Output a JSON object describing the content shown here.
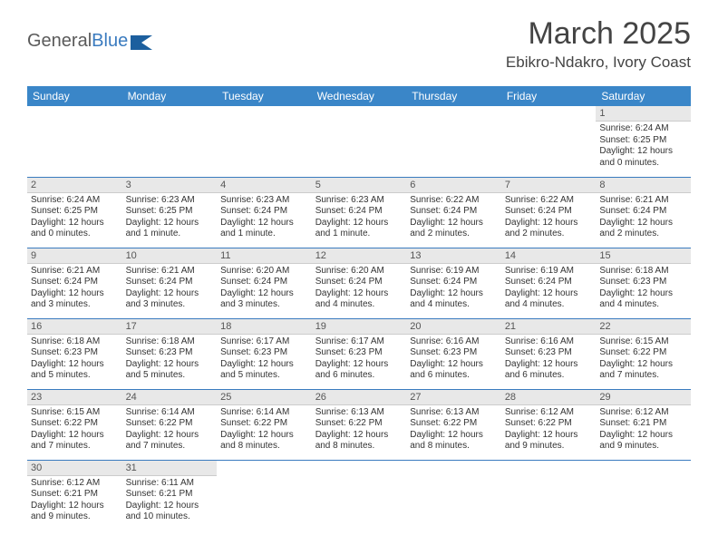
{
  "logo": {
    "text_a": "General",
    "text_b": "Blue",
    "accent": "#3a7bbf"
  },
  "title": "March 2025",
  "location": "Ebikro-Ndakro, Ivory Coast",
  "header_bg": "#3a86c8",
  "day_headers": [
    "Sunday",
    "Monday",
    "Tuesday",
    "Wednesday",
    "Thursday",
    "Friday",
    "Saturday"
  ],
  "weeks": [
    [
      null,
      null,
      null,
      null,
      null,
      null,
      {
        "n": "1",
        "sr": "Sunrise: 6:24 AM",
        "ss": "Sunset: 6:25 PM",
        "dl": "Daylight: 12 hours and 0 minutes."
      }
    ],
    [
      {
        "n": "2",
        "sr": "Sunrise: 6:24 AM",
        "ss": "Sunset: 6:25 PM",
        "dl": "Daylight: 12 hours and 0 minutes."
      },
      {
        "n": "3",
        "sr": "Sunrise: 6:23 AM",
        "ss": "Sunset: 6:25 PM",
        "dl": "Daylight: 12 hours and 1 minute."
      },
      {
        "n": "4",
        "sr": "Sunrise: 6:23 AM",
        "ss": "Sunset: 6:24 PM",
        "dl": "Daylight: 12 hours and 1 minute."
      },
      {
        "n": "5",
        "sr": "Sunrise: 6:23 AM",
        "ss": "Sunset: 6:24 PM",
        "dl": "Daylight: 12 hours and 1 minute."
      },
      {
        "n": "6",
        "sr": "Sunrise: 6:22 AM",
        "ss": "Sunset: 6:24 PM",
        "dl": "Daylight: 12 hours and 2 minutes."
      },
      {
        "n": "7",
        "sr": "Sunrise: 6:22 AM",
        "ss": "Sunset: 6:24 PM",
        "dl": "Daylight: 12 hours and 2 minutes."
      },
      {
        "n": "8",
        "sr": "Sunrise: 6:21 AM",
        "ss": "Sunset: 6:24 PM",
        "dl": "Daylight: 12 hours and 2 minutes."
      }
    ],
    [
      {
        "n": "9",
        "sr": "Sunrise: 6:21 AM",
        "ss": "Sunset: 6:24 PM",
        "dl": "Daylight: 12 hours and 3 minutes."
      },
      {
        "n": "10",
        "sr": "Sunrise: 6:21 AM",
        "ss": "Sunset: 6:24 PM",
        "dl": "Daylight: 12 hours and 3 minutes."
      },
      {
        "n": "11",
        "sr": "Sunrise: 6:20 AM",
        "ss": "Sunset: 6:24 PM",
        "dl": "Daylight: 12 hours and 3 minutes."
      },
      {
        "n": "12",
        "sr": "Sunrise: 6:20 AM",
        "ss": "Sunset: 6:24 PM",
        "dl": "Daylight: 12 hours and 4 minutes."
      },
      {
        "n": "13",
        "sr": "Sunrise: 6:19 AM",
        "ss": "Sunset: 6:24 PM",
        "dl": "Daylight: 12 hours and 4 minutes."
      },
      {
        "n": "14",
        "sr": "Sunrise: 6:19 AM",
        "ss": "Sunset: 6:24 PM",
        "dl": "Daylight: 12 hours and 4 minutes."
      },
      {
        "n": "15",
        "sr": "Sunrise: 6:18 AM",
        "ss": "Sunset: 6:23 PM",
        "dl": "Daylight: 12 hours and 4 minutes."
      }
    ],
    [
      {
        "n": "16",
        "sr": "Sunrise: 6:18 AM",
        "ss": "Sunset: 6:23 PM",
        "dl": "Daylight: 12 hours and 5 minutes."
      },
      {
        "n": "17",
        "sr": "Sunrise: 6:18 AM",
        "ss": "Sunset: 6:23 PM",
        "dl": "Daylight: 12 hours and 5 minutes."
      },
      {
        "n": "18",
        "sr": "Sunrise: 6:17 AM",
        "ss": "Sunset: 6:23 PM",
        "dl": "Daylight: 12 hours and 5 minutes."
      },
      {
        "n": "19",
        "sr": "Sunrise: 6:17 AM",
        "ss": "Sunset: 6:23 PM",
        "dl": "Daylight: 12 hours and 6 minutes."
      },
      {
        "n": "20",
        "sr": "Sunrise: 6:16 AM",
        "ss": "Sunset: 6:23 PM",
        "dl": "Daylight: 12 hours and 6 minutes."
      },
      {
        "n": "21",
        "sr": "Sunrise: 6:16 AM",
        "ss": "Sunset: 6:23 PM",
        "dl": "Daylight: 12 hours and 6 minutes."
      },
      {
        "n": "22",
        "sr": "Sunrise: 6:15 AM",
        "ss": "Sunset: 6:22 PM",
        "dl": "Daylight: 12 hours and 7 minutes."
      }
    ],
    [
      {
        "n": "23",
        "sr": "Sunrise: 6:15 AM",
        "ss": "Sunset: 6:22 PM",
        "dl": "Daylight: 12 hours and 7 minutes."
      },
      {
        "n": "24",
        "sr": "Sunrise: 6:14 AM",
        "ss": "Sunset: 6:22 PM",
        "dl": "Daylight: 12 hours and 7 minutes."
      },
      {
        "n": "25",
        "sr": "Sunrise: 6:14 AM",
        "ss": "Sunset: 6:22 PM",
        "dl": "Daylight: 12 hours and 8 minutes."
      },
      {
        "n": "26",
        "sr": "Sunrise: 6:13 AM",
        "ss": "Sunset: 6:22 PM",
        "dl": "Daylight: 12 hours and 8 minutes."
      },
      {
        "n": "27",
        "sr": "Sunrise: 6:13 AM",
        "ss": "Sunset: 6:22 PM",
        "dl": "Daylight: 12 hours and 8 minutes."
      },
      {
        "n": "28",
        "sr": "Sunrise: 6:12 AM",
        "ss": "Sunset: 6:22 PM",
        "dl": "Daylight: 12 hours and 9 minutes."
      },
      {
        "n": "29",
        "sr": "Sunrise: 6:12 AM",
        "ss": "Sunset: 6:21 PM",
        "dl": "Daylight: 12 hours and 9 minutes."
      }
    ],
    [
      {
        "n": "30",
        "sr": "Sunrise: 6:12 AM",
        "ss": "Sunset: 6:21 PM",
        "dl": "Daylight: 12 hours and 9 minutes."
      },
      {
        "n": "31",
        "sr": "Sunrise: 6:11 AM",
        "ss": "Sunset: 6:21 PM",
        "dl": "Daylight: 12 hours and 10 minutes."
      },
      null,
      null,
      null,
      null,
      null
    ]
  ]
}
